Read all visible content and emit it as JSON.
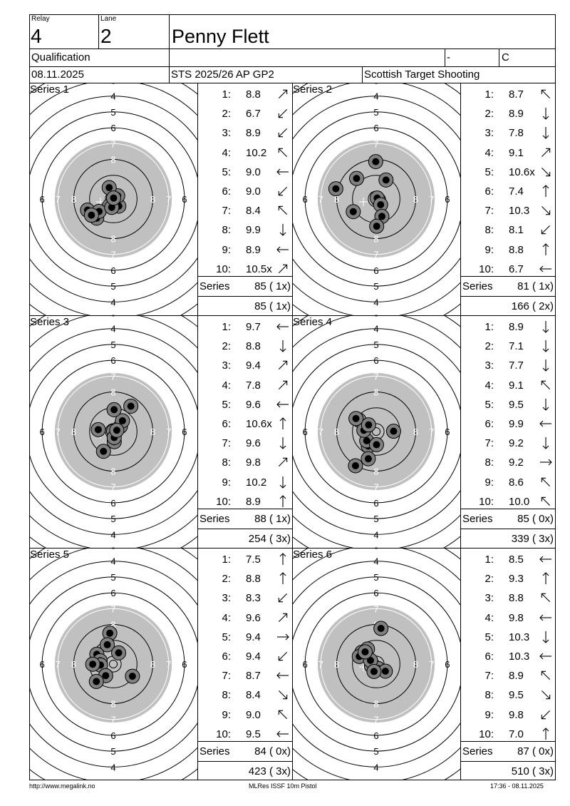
{
  "header": {
    "relay_label": "Relay",
    "relay": "4",
    "lane_label": "Lane",
    "lane": "2",
    "name": "Penny Flett",
    "stage": "Qualification",
    "dash": "-",
    "class": "C",
    "date": "08.11.2025",
    "competition": "STS 2025/26 AP GP2",
    "club": "Scottish Target Shooting"
  },
  "series": [
    {
      "title": "Series 1",
      "shots": [
        {
          "n": "1:",
          "v": "8.8",
          "dir": "NE"
        },
        {
          "n": "2:",
          "v": "6.7",
          "dir": "SW"
        },
        {
          "n": "3:",
          "v": "8.9",
          "dir": "SW"
        },
        {
          "n": "4:",
          "v": "10.2",
          "dir": "NW"
        },
        {
          "n": "5:",
          "v": "9.0",
          "dir": "W"
        },
        {
          "n": "6:",
          "v": "9.0",
          "dir": "SW"
        },
        {
          "n": "7:",
          "v": "8.4",
          "dir": "NW"
        },
        {
          "n": "8:",
          "v": "9.9",
          "dir": "S"
        },
        {
          "n": "9:",
          "v": "8.9",
          "dir": "W"
        },
        {
          "n": "10:",
          "v": "10.5x",
          "dir": "NE"
        }
      ],
      "series_label": "Series",
      "series_total": "85 ( 1x)",
      "running_total": "85 ( 1x)",
      "impacts": [
        [
          0.35,
          0.45
        ],
        [
          -1.05,
          1.21
        ],
        [
          -1.63,
          0.7
        ],
        [
          0.28,
          -0.2
        ],
        [
          -0.26,
          -0.72
        ],
        [
          -0.25,
          0.44
        ],
        [
          -0.9,
          0.78
        ],
        [
          -0.1,
          0.53
        ],
        [
          -1.38,
          1.02
        ],
        [
          0.02,
          -0.06
        ]
      ]
    },
    {
      "title": "Series 2",
      "shots": [
        {
          "n": "1:",
          "v": "8.7",
          "dir": "NW"
        },
        {
          "n": "2:",
          "v": "8.9",
          "dir": "S"
        },
        {
          "n": "3:",
          "v": "7.8",
          "dir": "S"
        },
        {
          "n": "4:",
          "v": "9.1",
          "dir": "NE"
        },
        {
          "n": "5:",
          "v": "10.6x",
          "dir": "SE"
        },
        {
          "n": "6:",
          "v": "7.4",
          "dir": "N"
        },
        {
          "n": "7:",
          "v": "10.3",
          "dir": "SE"
        },
        {
          "n": "8:",
          "v": "8.1",
          "dir": "SW"
        },
        {
          "n": "9:",
          "v": "8.8",
          "dir": "N"
        },
        {
          "n": "10:",
          "v": "6.7",
          "dir": "W"
        }
      ],
      "series_label": "Series",
      "series_total": "81 ( 1x)",
      "running_total": "166 ( 2x)",
      "impacts": [
        [
          0.15,
          0.06
        ],
        [
          -1.45,
          0.8
        ],
        [
          -1.24,
          -1.3
        ],
        [
          0.62,
          -1.2
        ],
        [
          0.06,
          -0.06
        ],
        [
          -0.03,
          -2.36
        ],
        [
          0.28,
          0.36
        ],
        [
          -2.55,
          -0.65
        ],
        [
          0.36,
          1.1
        ],
        [
          0.03,
          1.72
        ]
      ]
    },
    {
      "title": "Series 3",
      "shots": [
        {
          "n": "1:",
          "v": "9.7",
          "dir": "W"
        },
        {
          "n": "2:",
          "v": "8.8",
          "dir": "S"
        },
        {
          "n": "3:",
          "v": "9.4",
          "dir": "NE"
        },
        {
          "n": "4:",
          "v": "7.8",
          "dir": "NE"
        },
        {
          "n": "5:",
          "v": "9.6",
          "dir": "W"
        },
        {
          "n": "6:",
          "v": "10.6x",
          "dir": "N"
        },
        {
          "n": "7:",
          "v": "9.6",
          "dir": "S"
        },
        {
          "n": "8:",
          "v": "9.8",
          "dir": "NE"
        },
        {
          "n": "9:",
          "v": "10.2",
          "dir": "S"
        },
        {
          "n": "10:",
          "v": "8.9",
          "dir": "N"
        }
      ],
      "series_label": "Series",
      "series_total": "88 ( 1x)",
      "running_total": "254 ( 3x)",
      "impacts": [
        [
          0.45,
          -0.32
        ],
        [
          -0.62,
          1.25
        ],
        [
          0.58,
          -0.68
        ],
        [
          1.11,
          -1.6
        ],
        [
          -0.95,
          -0.12
        ],
        [
          0.02,
          -0.02
        ],
        [
          0.06,
          0.64
        ],
        [
          0.05,
          -1.38
        ],
        [
          0.06,
          0.38
        ],
        [
          0.22,
          -0.08
        ]
      ]
    },
    {
      "title": "Series 4",
      "shots": [
        {
          "n": "1:",
          "v": "8.9",
          "dir": "S"
        },
        {
          "n": "2:",
          "v": "7.1",
          "dir": "S"
        },
        {
          "n": "3:",
          "v": "7.7",
          "dir": "S"
        },
        {
          "n": "4:",
          "v": "9.1",
          "dir": "NW"
        },
        {
          "n": "5:",
          "v": "9.5",
          "dir": "S"
        },
        {
          "n": "6:",
          "v": "9.9",
          "dir": "W"
        },
        {
          "n": "7:",
          "v": "9.2",
          "dir": "S"
        },
        {
          "n": "8:",
          "v": "9.2",
          "dir": "E"
        },
        {
          "n": "9:",
          "v": "8.6",
          "dir": "NW"
        },
        {
          "n": "10:",
          "v": "10.0",
          "dir": "NW"
        }
      ],
      "series_label": "Series",
      "series_total": "85 ( 0x)",
      "route": "",
      "running_total": "339 ( 3x)",
      "impacts": [
        [
          -0.5,
          0.92
        ],
        [
          -1.31,
          2.16
        ],
        [
          -0.5,
          1.72
        ],
        [
          -1.08,
          -0.72
        ],
        [
          -0.6,
          0.58
        ],
        [
          -0.78,
          -0.08
        ],
        [
          -0.48,
          -0.42
        ],
        [
          1.1,
          -0.02
        ],
        [
          -1.28,
          -0.82
        ],
        [
          0.02,
          0.83
        ]
      ]
    },
    {
      "title": "Series 5",
      "shots": [
        {
          "n": "1:",
          "v": "7.5",
          "dir": "N"
        },
        {
          "n": "2:",
          "v": "8.8",
          "dir": "N"
        },
        {
          "n": "3:",
          "v": "8.3",
          "dir": "SW"
        },
        {
          "n": "4:",
          "v": "9.6",
          "dir": "NE"
        },
        {
          "n": "5:",
          "v": "9.4",
          "dir": "E"
        },
        {
          "n": "6:",
          "v": "9.4",
          "dir": "SW"
        },
        {
          "n": "7:",
          "v": "8.7",
          "dir": "W"
        },
        {
          "n": "8:",
          "v": "8.4",
          "dir": "SE"
        },
        {
          "n": "9:",
          "v": "9.0",
          "dir": "NW"
        },
        {
          "n": "10:",
          "v": "9.5",
          "dir": "W"
        }
      ],
      "series_label": "Series",
      "series_total": "84 ( 0x)",
      "running_total": "423 ( 3x)",
      "impacts": [
        [
          -0.22,
          -1.95
        ],
        [
          -0.38,
          -1.22
        ],
        [
          -1.04,
          -0.62
        ],
        [
          0.34,
          -0.71
        ],
        [
          -0.83,
          -0.21
        ],
        [
          -0.81,
          0.06
        ],
        [
          -1.3,
          0.01
        ],
        [
          -0.48,
          0.73
        ],
        [
          1.21,
          0.77
        ],
        [
          -1.07,
          1.1
        ]
      ]
    },
    {
      "title": "Series 6",
      "shots": [
        {
          "n": "1:",
          "v": "8.5",
          "dir": "W"
        },
        {
          "n": "2:",
          "v": "9.3",
          "dir": "N"
        },
        {
          "n": "3:",
          "v": "8.8",
          "dir": "NW"
        },
        {
          "n": "4:",
          "v": "9.8",
          "dir": "W"
        },
        {
          "n": "5:",
          "v": "10.3",
          "dir": "S"
        },
        {
          "n": "6:",
          "v": "10.3",
          "dir": "W"
        },
        {
          "n": "7:",
          "v": "8.9",
          "dir": "NW"
        },
        {
          "n": "8:",
          "v": "9.5",
          "dir": "SE"
        },
        {
          "n": "9:",
          "v": "9.8",
          "dir": "SW"
        },
        {
          "n": "10:",
          "v": "7.0",
          "dir": "N"
        }
      ],
      "series_label": "Series",
      "series_total": "87 ( 0x)",
      "running_total": "510 ( 3x)",
      "impacts": [
        [
          0.3,
          -2.25
        ],
        [
          -0.55,
          -0.95
        ],
        [
          -0.9,
          -0.75
        ],
        [
          -1.07,
          -0.48
        ],
        [
          -0.3,
          0.11
        ],
        [
          0.12,
          0.28
        ],
        [
          -0.36,
          -0.23
        ],
        [
          0.58,
          0.45
        ],
        [
          -0.14,
          0.47
        ],
        [
          -0.7,
          -0.77
        ]
      ]
    }
  ],
  "footer": {
    "url": "http://www.megalink.no",
    "program": "MLRes ISSF 10m Pistol",
    "timestamp": "17:36 - 08.11.2025"
  }
}
